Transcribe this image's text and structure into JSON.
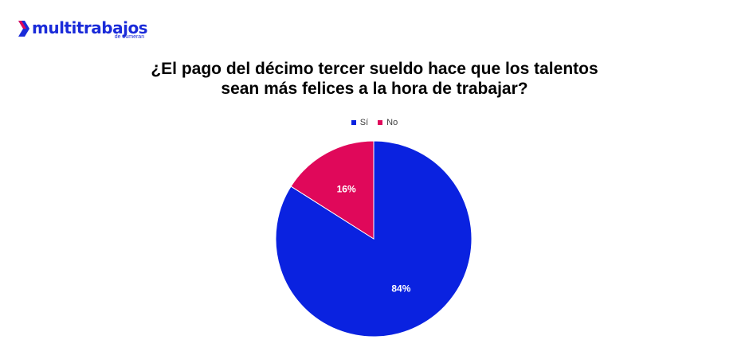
{
  "brand": {
    "name": "multitrabajos",
    "sub": "de bumeran",
    "color": "#1a2bd9"
  },
  "chart_data": {
    "type": "pie",
    "title_lines": [
      "¿El pago del décimo tercer sueldo hace que los talentos",
      "sean más felices a la hora de trabajar?"
    ],
    "legend_position": "top",
    "slices": [
      {
        "label": "Sí",
        "value": 84,
        "display": "84%",
        "color": "#0a22e0"
      },
      {
        "label": "No",
        "value": 16,
        "display": "16%",
        "color": "#e0085a"
      }
    ]
  }
}
